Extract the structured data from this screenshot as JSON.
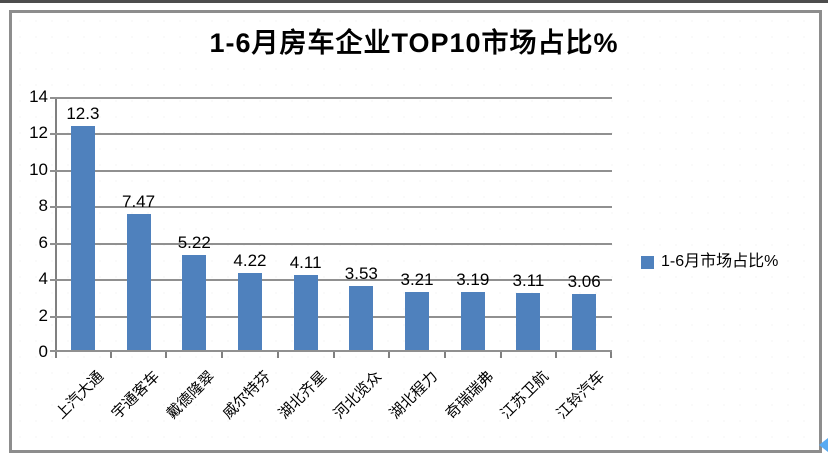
{
  "page": {
    "title": "1-6月房车企业TOP10市场占比%"
  },
  "legend": {
    "label": "1-6月市场占比%"
  },
  "colors": {
    "bar": "#4F81BD",
    "gridline": "#909090",
    "axis": "#808080",
    "frame_border": "#8d8d8d",
    "top_rule": "#4d4d4d",
    "corner_arrow": "#58aaf2"
  },
  "chart_data": {
    "type": "bar",
    "title": "1-6月房车企业TOP10市场占比%",
    "categories": [
      "上汽大通",
      "宇通客车",
      "戴德隆翠",
      "威尔特芬",
      "湖北齐星",
      "河北览众",
      "湖北程力",
      "奇瑞瑞弗",
      "江苏卫航",
      "江铃汽车"
    ],
    "series": [
      {
        "name": "1-6月市场占比%",
        "values": [
          12.3,
          7.47,
          5.22,
          4.22,
          4.11,
          3.53,
          3.21,
          3.19,
          3.11,
          3.06
        ]
      }
    ],
    "value_labels": [
      "12.3",
      "7.47",
      "5.22",
      "4.22",
      "4.11",
      "3.53",
      "3.21",
      "3.19",
      "3.11",
      "3.06"
    ],
    "xlabel": "",
    "ylabel": "",
    "ylim": [
      0,
      14
    ],
    "ytick_step": 2,
    "yticks": [
      0,
      2,
      4,
      6,
      8,
      10,
      12,
      14
    ],
    "grid": true,
    "legend_position": "right",
    "bar_color": "#4F81BD"
  }
}
